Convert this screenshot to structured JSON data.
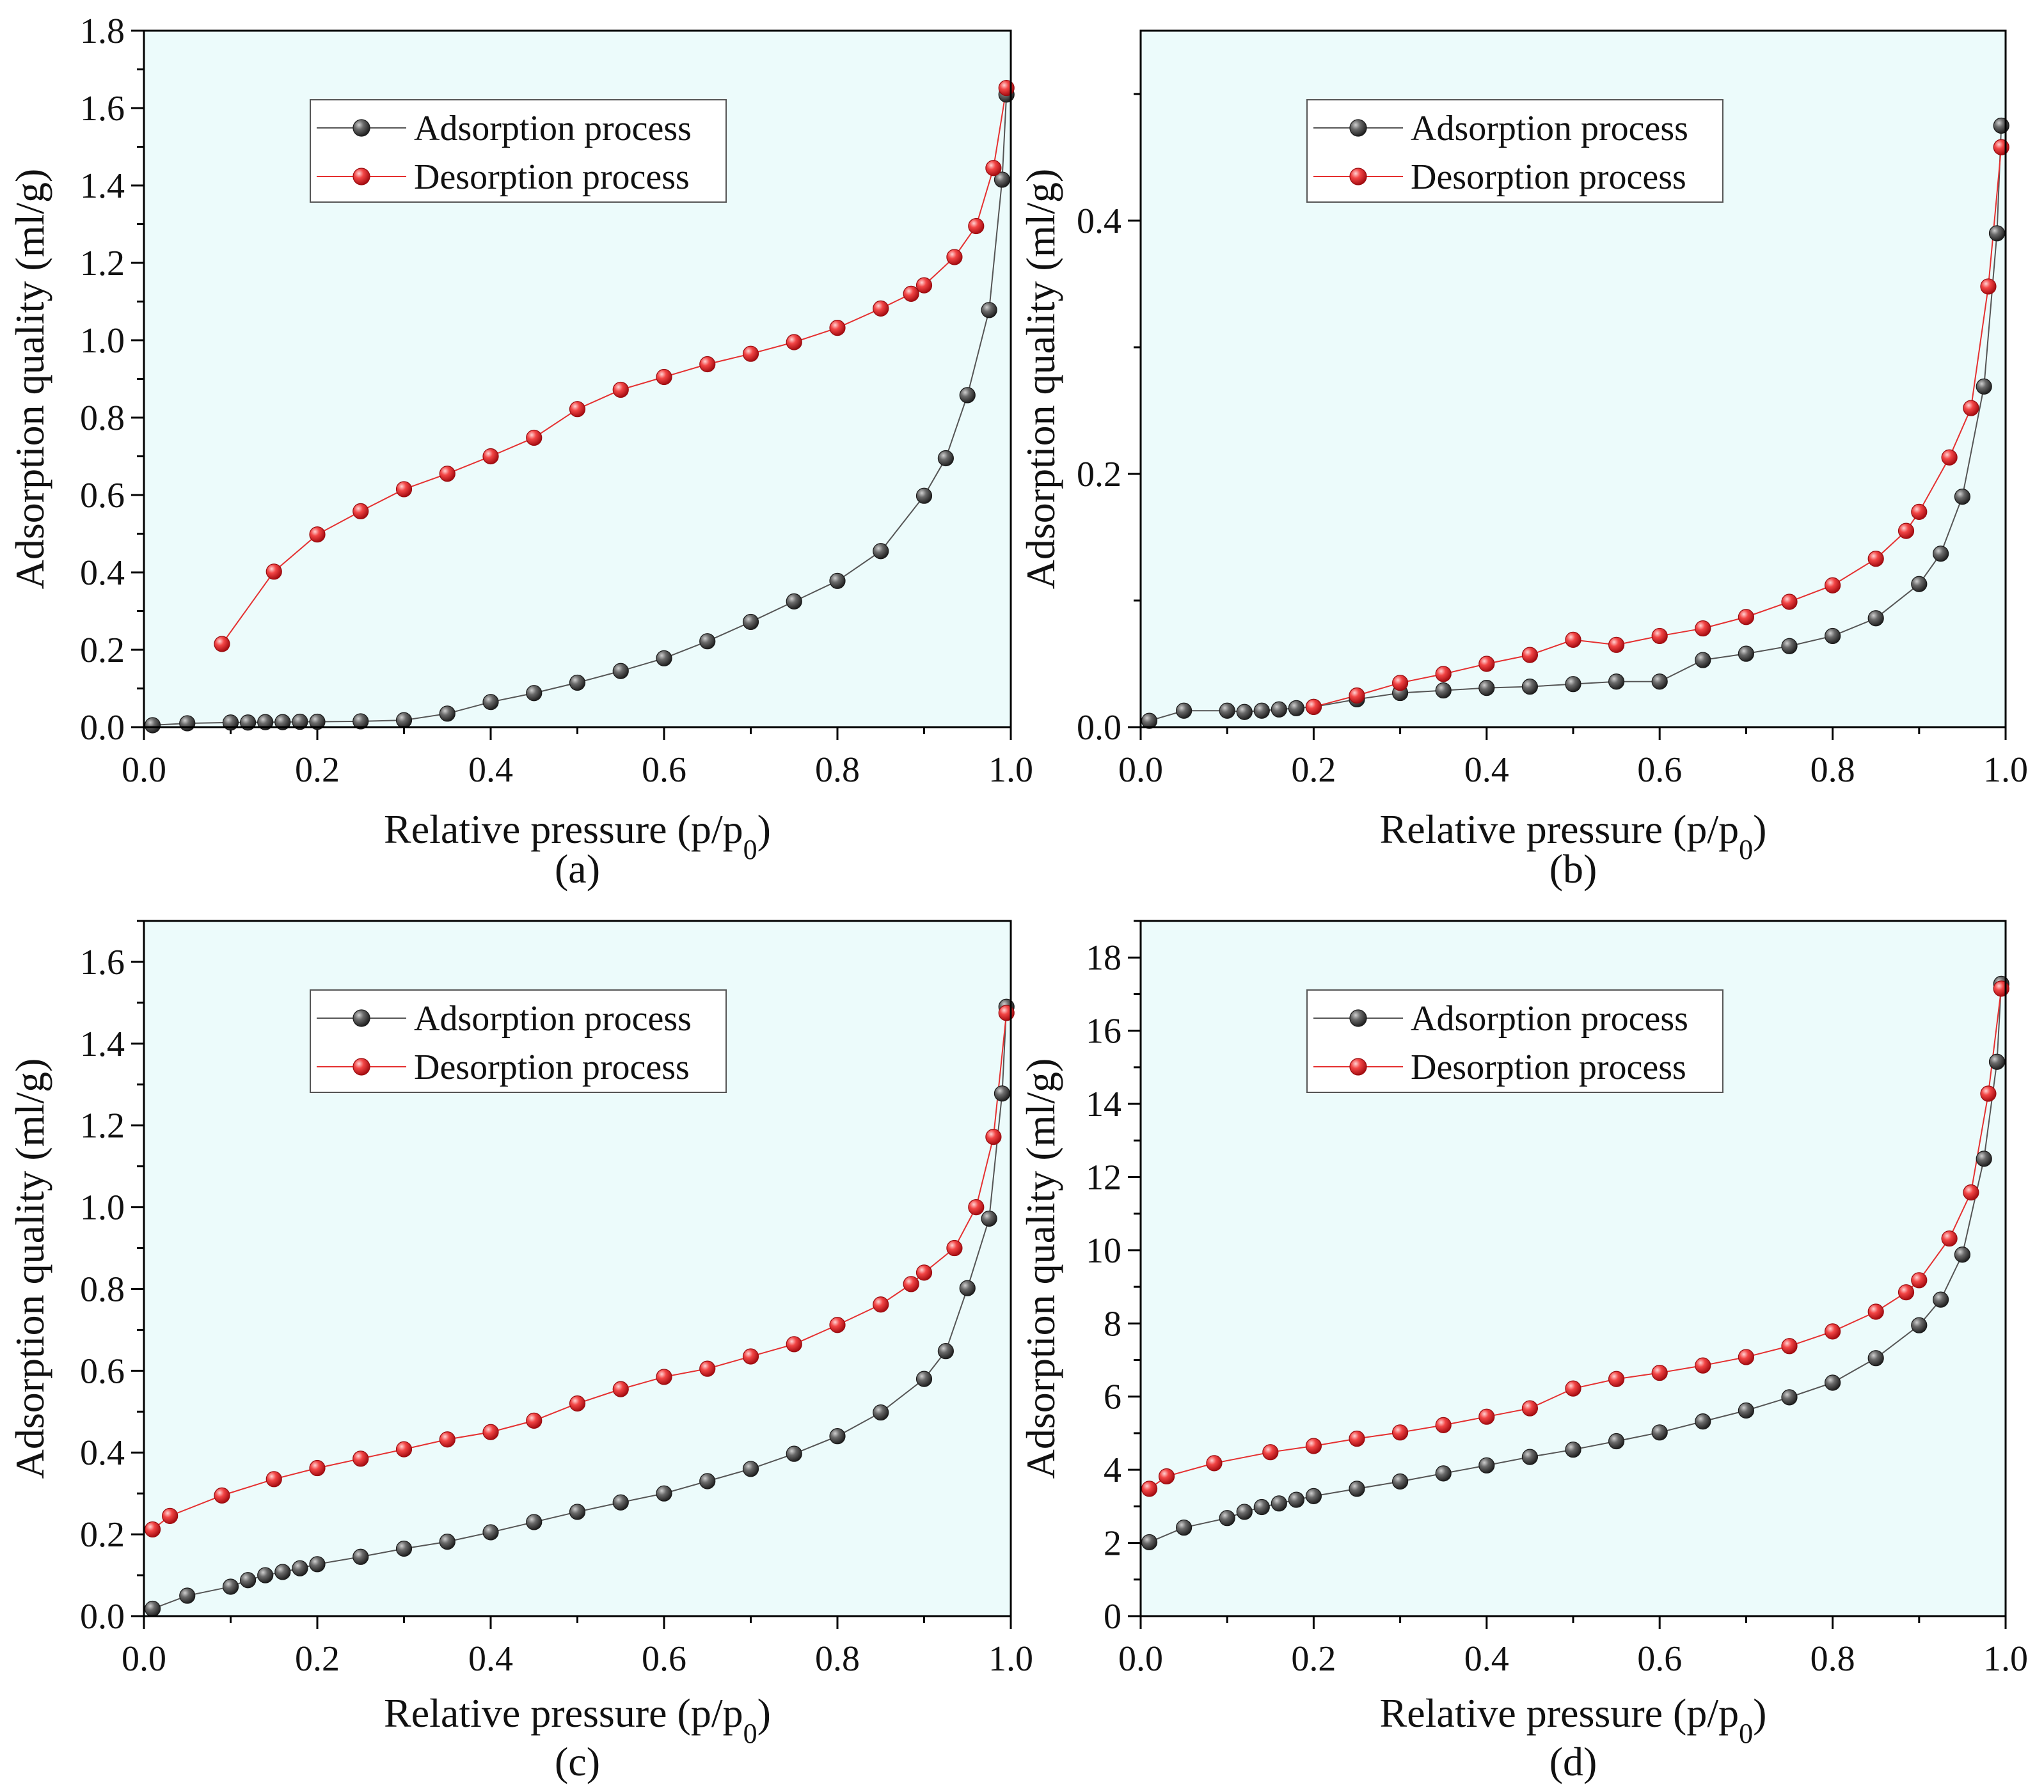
{
  "colors": {
    "plot_background": "#ecfbfb",
    "adsorption_marker": "#3d3d3d",
    "desorption_marker": "#ee1c24",
    "adsorption_line": "#555555",
    "desorption_line": "#e53030"
  },
  "marker_shape": "sphere",
  "chart_data": [
    {
      "type": "line",
      "caption": "(a)",
      "xlabel": "Relative pressure (p/p0)",
      "xlabel_main": "Relative pressure (p/p",
      "xlabel_sub": "0",
      "xlabel_end": ")",
      "ylabel": "Adsorption quality (ml/g)",
      "xlim": [
        0,
        1
      ],
      "ylim": [
        0,
        1.8
      ],
      "xticks": [
        "0.0",
        "0.2",
        "0.4",
        "0.6",
        "0.8",
        "1.0"
      ],
      "yticks": [
        "0.0",
        "0.2",
        "0.4",
        "0.6",
        "0.8",
        "1.0",
        "1.2",
        "1.4",
        "1.6",
        "1.8"
      ],
      "legend_position": "upper-center",
      "series": [
        {
          "name": "Adsorption process",
          "key": "adsorption",
          "x": [
            0.01,
            0.05,
            0.1,
            0.12,
            0.14,
            0.16,
            0.18,
            0.2,
            0.25,
            0.3,
            0.35,
            0.4,
            0.45,
            0.5,
            0.55,
            0.6,
            0.65,
            0.7,
            0.75,
            0.8,
            0.85,
            0.9,
            0.925,
            0.95,
            0.975,
            0.99,
            0.995
          ],
          "y": [
            0.005,
            0.01,
            0.012,
            0.012,
            0.013,
            0.013,
            0.014,
            0.014,
            0.015,
            0.018,
            0.035,
            0.065,
            0.088,
            0.115,
            0.145,
            0.178,
            0.222,
            0.272,
            0.325,
            0.378,
            0.455,
            0.598,
            0.695,
            0.858,
            1.078,
            1.415,
            1.635
          ]
        },
        {
          "name": "Desorption process",
          "key": "desorption",
          "x": [
            0.995,
            0.98,
            0.96,
            0.935,
            0.9,
            0.885,
            0.85,
            0.8,
            0.75,
            0.7,
            0.65,
            0.6,
            0.55,
            0.5,
            0.45,
            0.4,
            0.35,
            0.3,
            0.25,
            0.2,
            0.15,
            0.09
          ],
          "y": [
            1.652,
            1.445,
            1.295,
            1.215,
            1.142,
            1.12,
            1.082,
            1.032,
            0.995,
            0.965,
            0.938,
            0.905,
            0.872,
            0.822,
            0.748,
            0.7,
            0.655,
            0.615,
            0.558,
            0.498,
            0.402,
            0.215
          ]
        }
      ]
    },
    {
      "type": "line",
      "caption": "(b)",
      "xlabel": "Relative pressure (p/p0)",
      "xlabel_main": "Relative pressure (p/p",
      "xlabel_sub": "0",
      "xlabel_end": ")",
      "ylabel": "Adsorption quality (ml/g)",
      "xlim": [
        0,
        1
      ],
      "ylim": [
        0,
        0.55
      ],
      "xticks": [
        "0.0",
        "0.2",
        "0.4",
        "0.6",
        "0.8",
        "1.0"
      ],
      "yticks": [
        "0.0",
        "0.2",
        "0.4"
      ],
      "ytick_values": [
        0,
        0.2,
        0.4
      ],
      "legend_position": "upper-center",
      "series": [
        {
          "name": "Adsorption process",
          "key": "adsorption",
          "x": [
            0.01,
            0.05,
            0.1,
            0.12,
            0.14,
            0.16,
            0.18,
            0.2,
            0.25,
            0.3,
            0.35,
            0.4,
            0.45,
            0.5,
            0.55,
            0.6,
            0.65,
            0.7,
            0.75,
            0.8,
            0.85,
            0.9,
            0.925,
            0.95,
            0.975,
            0.99,
            0.995
          ],
          "y": [
            0.005,
            0.013,
            0.013,
            0.012,
            0.013,
            0.014,
            0.015,
            0.016,
            0.022,
            0.027,
            0.029,
            0.031,
            0.032,
            0.034,
            0.036,
            0.036,
            0.053,
            0.058,
            0.064,
            0.072,
            0.086,
            0.113,
            0.137,
            0.182,
            0.269,
            0.39,
            0.475
          ]
        },
        {
          "name": "Desorption process",
          "key": "desorption",
          "x": [
            0.995,
            0.98,
            0.96,
            0.935,
            0.9,
            0.885,
            0.85,
            0.8,
            0.75,
            0.7,
            0.65,
            0.6,
            0.55,
            0.5,
            0.45,
            0.4,
            0.35,
            0.3,
            0.25,
            0.2
          ],
          "y": [
            0.458,
            0.348,
            0.252,
            0.213,
            0.17,
            0.155,
            0.133,
            0.112,
            0.099,
            0.087,
            0.078,
            0.072,
            0.065,
            0.069,
            0.057,
            0.05,
            0.042,
            0.035,
            0.025,
            0.016
          ]
        }
      ]
    },
    {
      "type": "line",
      "caption": "(c)",
      "xlabel": "Relative pressure (p/p0)",
      "xlabel_main": "Relative pressure (p/p",
      "xlabel_sub": "0",
      "xlabel_end": ")",
      "ylabel": "Adsorption quality (ml/g)",
      "xlim": [
        0,
        1
      ],
      "ylim": [
        0,
        1.7
      ],
      "xticks": [
        "0.0",
        "0.2",
        "0.4",
        "0.6",
        "0.8",
        "1.0"
      ],
      "yticks": [
        "0.0",
        "0.2",
        "0.4",
        "0.6",
        "0.8",
        "1.0",
        "1.2",
        "1.4",
        "1.6"
      ],
      "legend_position": "upper-center",
      "series": [
        {
          "name": "Adsorption process",
          "key": "adsorption",
          "x": [
            0.01,
            0.05,
            0.1,
            0.12,
            0.14,
            0.16,
            0.18,
            0.2,
            0.25,
            0.3,
            0.35,
            0.4,
            0.45,
            0.5,
            0.55,
            0.6,
            0.65,
            0.7,
            0.75,
            0.8,
            0.85,
            0.9,
            0.925,
            0.95,
            0.975,
            0.99,
            0.995
          ],
          "y": [
            0.018,
            0.05,
            0.072,
            0.088,
            0.1,
            0.108,
            0.117,
            0.127,
            0.145,
            0.165,
            0.182,
            0.205,
            0.23,
            0.255,
            0.278,
            0.3,
            0.33,
            0.36,
            0.397,
            0.44,
            0.498,
            0.58,
            0.648,
            0.802,
            0.972,
            1.278,
            1.49
          ]
        },
        {
          "name": "Desorption process",
          "key": "desorption",
          "x": [
            0.995,
            0.98,
            0.96,
            0.935,
            0.9,
            0.885,
            0.85,
            0.8,
            0.75,
            0.7,
            0.65,
            0.6,
            0.55,
            0.5,
            0.45,
            0.4,
            0.35,
            0.3,
            0.25,
            0.2,
            0.15,
            0.09,
            0.03,
            0.01
          ],
          "y": [
            1.475,
            1.172,
            1.0,
            0.9,
            0.84,
            0.812,
            0.762,
            0.712,
            0.665,
            0.635,
            0.605,
            0.585,
            0.555,
            0.52,
            0.478,
            0.45,
            0.432,
            0.408,
            0.385,
            0.362,
            0.335,
            0.295,
            0.245,
            0.212
          ]
        }
      ]
    },
    {
      "type": "line",
      "caption": "(d)",
      "xlabel": "Relative pressure (p/p0)",
      "xlabel_main": "Relative pressure (p/p",
      "xlabel_sub": "0",
      "xlabel_end": ")",
      "ylabel": "Adsorption quality (ml/g)",
      "xlim": [
        0,
        1
      ],
      "ylim": [
        0,
        19
      ],
      "xticks": [
        "0.0",
        "0.2",
        "0.4",
        "0.6",
        "0.8",
        "1.0"
      ],
      "yticks": [
        "0",
        "2",
        "4",
        "6",
        "8",
        "10",
        "12",
        "14",
        "16",
        "18"
      ],
      "legend_position": "upper-center",
      "series": [
        {
          "name": "Adsorption process",
          "key": "adsorption",
          "x": [
            0.01,
            0.05,
            0.1,
            0.12,
            0.14,
            0.16,
            0.18,
            0.2,
            0.25,
            0.3,
            0.35,
            0.4,
            0.45,
            0.5,
            0.55,
            0.6,
            0.65,
            0.7,
            0.75,
            0.8,
            0.85,
            0.9,
            0.925,
            0.95,
            0.975,
            0.99,
            0.995
          ],
          "y": [
            2.02,
            2.42,
            2.68,
            2.85,
            2.98,
            3.08,
            3.18,
            3.28,
            3.48,
            3.68,
            3.9,
            4.12,
            4.35,
            4.55,
            4.78,
            5.02,
            5.32,
            5.62,
            5.98,
            6.38,
            7.05,
            7.95,
            8.65,
            9.88,
            12.5,
            15.15,
            17.28
          ]
        },
        {
          "name": "Desorption process",
          "key": "desorption",
          "x": [
            0.995,
            0.98,
            0.96,
            0.935,
            0.9,
            0.885,
            0.85,
            0.8,
            0.75,
            0.7,
            0.65,
            0.6,
            0.55,
            0.5,
            0.45,
            0.4,
            0.35,
            0.3,
            0.25,
            0.2,
            0.15,
            0.085,
            0.03,
            0.01
          ],
          "y": [
            17.15,
            14.28,
            11.58,
            10.32,
            9.18,
            8.85,
            8.32,
            7.78,
            7.38,
            7.08,
            6.85,
            6.65,
            6.48,
            6.22,
            5.68,
            5.45,
            5.22,
            5.02,
            4.85,
            4.65,
            4.48,
            4.18,
            3.82,
            3.48
          ]
        }
      ]
    }
  ]
}
